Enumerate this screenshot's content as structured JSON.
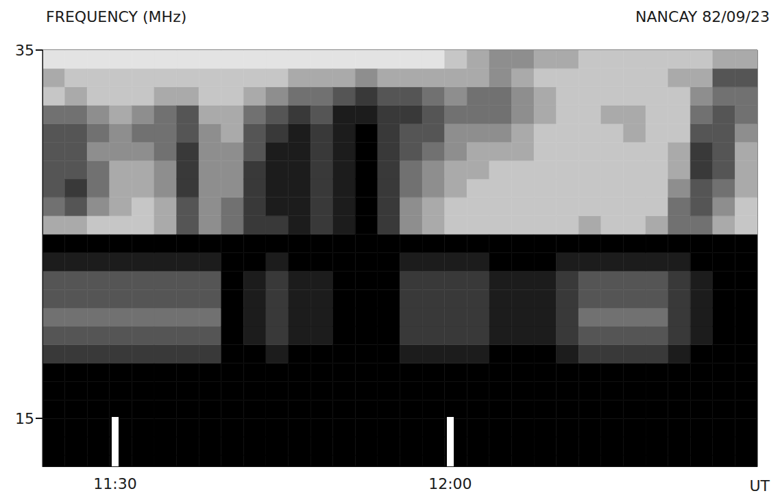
{
  "chart_data": {
    "type": "heatmap",
    "title": "NANCAY 82/09/23",
    "y_label": "FREQUENCY (MHz)",
    "x_label": "UT",
    "xlim": [
      683.5,
      747.5
    ],
    "ylim": [
      12.4,
      35
    ],
    "xticks": [
      {
        "value": 690,
        "label": "11:30"
      },
      {
        "value": 720,
        "label": "12:00"
      }
    ],
    "yticks": [
      15,
      35
    ],
    "grid": false,
    "zlim": [
      0,
      9
    ],
    "x_bins": [
      683.5,
      685.5,
      687.5,
      689.5,
      691.5,
      693.5,
      695.5,
      697.5,
      699.5,
      701.5,
      703.5,
      705.5,
      707.5,
      709.5,
      711.5,
      713.5,
      715.5,
      717.5,
      719.5,
      721.5,
      723.5,
      725.5,
      727.5,
      729.5,
      731.5,
      733.5,
      735.5,
      737.5,
      739.5,
      741.5,
      743.5,
      745.5,
      747.5
    ],
    "y_bins": [
      12.4,
      13,
      14,
      15,
      16,
      17,
      18,
      19,
      20,
      21,
      22,
      23,
      24,
      25,
      26,
      27,
      28,
      29,
      30,
      31,
      32,
      33,
      34,
      35
    ],
    "z": [
      [
        9,
        9,
        9,
        9,
        9,
        9,
        7,
        6,
        5,
        6,
        6,
        8,
        9,
        3,
        5,
        6,
        6,
        6,
        6,
        5,
        2,
        3,
        1
      ],
      [
        9,
        9,
        9,
        9,
        9,
        9,
        7,
        6,
        5,
        6,
        6,
        8,
        9,
        3,
        6,
        7,
        6,
        6,
        6,
        5,
        3,
        2,
        1
      ],
      [
        9,
        9,
        9,
        9,
        9,
        9,
        7,
        6,
        5,
        6,
        6,
        8,
        9,
        2,
        4,
        5,
        5,
        4,
        5,
        4,
        2,
        2,
        1
      ],
      [
        9,
        9,
        9,
        9,
        9,
        9,
        7,
        6,
        5,
        6,
        6,
        8,
        9,
        2,
        3,
        3,
        3,
        4,
        4,
        3,
        2,
        2,
        1
      ],
      [
        9,
        9,
        9,
        9,
        9,
        9,
        7,
        6,
        5,
        6,
        6,
        8,
        9,
        2,
        2,
        3,
        3,
        4,
        5,
        4,
        2,
        2,
        1
      ],
      [
        9,
        9,
        9,
        9,
        9,
        9,
        7,
        6,
        5,
        6,
        6,
        8,
        9,
        3,
        3,
        4,
        4,
        5,
        5,
        5,
        3,
        2,
        1
      ],
      [
        9,
        9,
        9,
        9,
        9,
        9,
        7,
        6,
        5,
        6,
        6,
        8,
        9,
        6,
        6,
        7,
        7,
        7,
        6,
        6,
        3,
        2,
        1
      ],
      [
        9,
        9,
        9,
        9,
        9,
        9,
        7,
        6,
        5,
        6,
        6,
        8,
        9,
        4,
        4,
        4,
        4,
        4,
        4,
        3,
        2,
        2,
        1
      ],
      [
        9,
        9,
        9,
        9,
        9,
        9,
        9,
        9,
        9,
        9,
        9,
        9,
        9,
        5,
        5,
        4,
        4,
        4,
        3,
        3,
        2,
        2,
        1
      ],
      [
        9,
        9,
        9,
        9,
        9,
        9,
        9,
        8,
        8,
        8,
        8,
        9,
        9,
        7,
        7,
        7,
        7,
        6,
        6,
        5,
        3,
        2,
        1
      ],
      [
        9,
        9,
        9,
        9,
        9,
        9,
        8,
        7,
        7,
        7,
        7,
        8,
        9,
        7,
        8,
        8,
        8,
        8,
        7,
        6,
        4,
        2,
        1
      ],
      [
        9,
        9,
        9,
        9,
        9,
        9,
        9,
        8,
        8,
        8,
        8,
        9,
        9,
        8,
        8,
        8,
        8,
        8,
        8,
        7,
        5,
        3,
        1
      ],
      [
        9,
        9,
        9,
        9,
        9,
        9,
        9,
        8,
        8,
        8,
        8,
        9,
        9,
        7,
        7,
        7,
        7,
        7,
        7,
        6,
        5,
        3,
        1
      ],
      [
        9,
        9,
        9,
        9,
        9,
        9,
        9,
        9,
        9,
        9,
        9,
        9,
        9,
        8,
        8,
        8,
        8,
        8,
        8,
        8,
        6,
        3,
        1
      ],
      [
        9,
        9,
        9,
        9,
        9,
        9,
        9,
        9,
        9,
        9,
        9,
        9,
        9,
        9,
        9,
        9,
        9,
        9,
        9,
        8,
        7,
        4,
        1
      ],
      [
        9,
        9,
        9,
        9,
        9,
        9,
        9,
        9,
        9,
        9,
        9,
        9,
        9,
        7,
        7,
        7,
        7,
        7,
        7,
        7,
        6,
        3,
        1
      ],
      [
        9,
        9,
        9,
        9,
        9,
        9,
        8,
        7,
        7,
        7,
        7,
        8,
        9,
        4,
        4,
        5,
        5,
        6,
        6,
        7,
        6,
        3,
        1
      ],
      [
        9,
        9,
        9,
        9,
        9,
        9,
        8,
        7,
        7,
        7,
        7,
        8,
        9,
        3,
        3,
        4,
        4,
        5,
        6,
        6,
        5,
        3,
        1
      ],
      [
        9,
        9,
        9,
        9,
        9,
        9,
        8,
        7,
        7,
        7,
        7,
        8,
        9,
        2,
        2,
        3,
        3,
        4,
        4,
        5,
        4,
        3,
        2
      ],
      [
        9,
        9,
        9,
        9,
        9,
        9,
        8,
        7,
        7,
        7,
        7,
        8,
        9,
        2,
        2,
        2,
        3,
        3,
        4,
        5,
        5,
        3,
        3
      ],
      [
        9,
        9,
        9,
        9,
        9,
        9,
        9,
        8,
        8,
        8,
        8,
        9,
        9,
        2,
        2,
        2,
        2,
        3,
        4,
        5,
        5,
        4,
        4
      ],
      [
        9,
        9,
        9,
        9,
        9,
        9,
        9,
        8,
        8,
        8,
        8,
        9,
        9,
        2,
        2,
        2,
        2,
        3,
        3,
        4,
        4,
        3,
        4
      ],
      [
        9,
        9,
        9,
        9,
        9,
        9,
        9,
        8,
        8,
        8,
        8,
        9,
        9,
        2,
        2,
        2,
        2,
        2,
        2,
        3,
        3,
        2,
        3
      ],
      [
        9,
        9,
        9,
        9,
        9,
        9,
        8,
        7,
        7,
        7,
        7,
        8,
        9,
        2,
        2,
        2,
        2,
        2,
        2,
        2,
        2,
        2,
        3
      ],
      [
        9,
        9,
        9,
        9,
        9,
        9,
        7,
        6,
        5,
        6,
        6,
        8,
        9,
        3,
        2,
        2,
        2,
        2,
        2,
        2,
        2,
        2,
        2
      ],
      [
        9,
        9,
        9,
        9,
        9,
        9,
        7,
        6,
        5,
        6,
        6,
        8,
        9,
        2,
        2,
        2,
        2,
        2,
        2,
        3,
        2,
        2,
        2
      ],
      [
        9,
        9,
        9,
        9,
        9,
        9,
        7,
        6,
        5,
        6,
        6,
        8,
        9,
        2,
        2,
        2,
        2,
        2,
        3,
        3,
        2,
        2,
        2
      ],
      [
        9,
        9,
        9,
        9,
        9,
        9,
        7,
        6,
        5,
        6,
        6,
        8,
        9,
        3,
        2,
        2,
        2,
        2,
        2,
        2,
        2,
        2,
        2
      ],
      [
        9,
        9,
        9,
        9,
        9,
        9,
        8,
        7,
        7,
        7,
        7,
        8,
        9,
        5,
        5,
        4,
        3,
        3,
        2,
        2,
        2,
        3,
        2
      ],
      [
        9,
        9,
        9,
        9,
        9,
        9,
        9,
        8,
        8,
        8,
        8,
        9,
        9,
        5,
        6,
        6,
        7,
        7,
        6,
        5,
        4,
        3,
        2
      ],
      [
        9,
        9,
        9,
        9,
        9,
        9,
        9,
        9,
        9,
        9,
        9,
        9,
        9,
        3,
        4,
        5,
        6,
        6,
        6,
        6,
        5,
        6,
        3
      ],
      [
        9,
        9,
        9,
        9,
        9,
        9,
        9,
        9,
        9,
        9,
        9,
        9,
        9,
        2,
        2,
        3,
        3,
        3,
        4,
        5,
        5,
        6,
        3
      ]
    ]
  }
}
